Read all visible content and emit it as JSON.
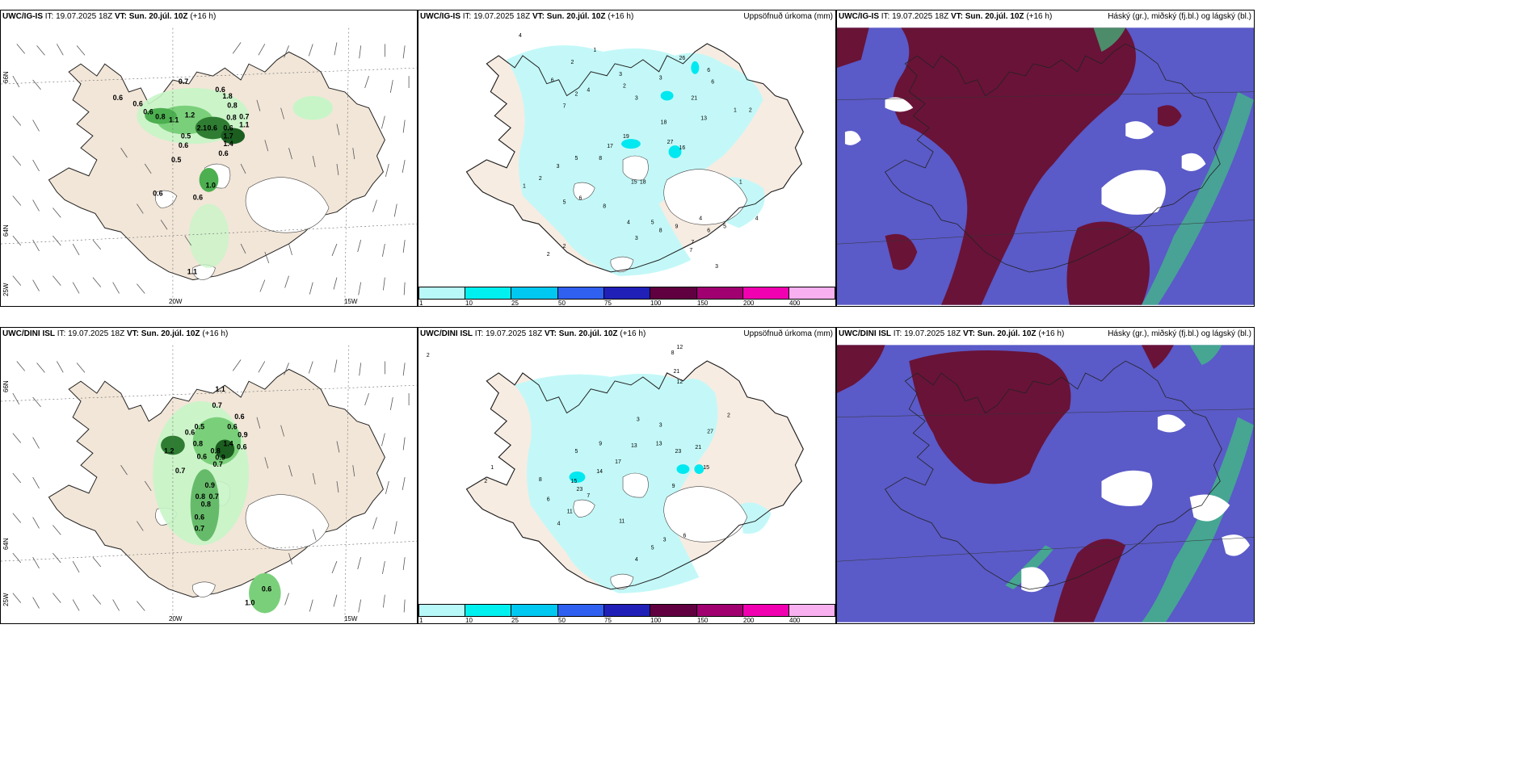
{
  "panels": {
    "p1": {
      "model": "UWC/IG-IS",
      "it": "IT: 19.07.2025 18Z",
      "vt": "VT: Sun. 20.júl. 10Z",
      "lead": "(+16 h)",
      "right": ""
    },
    "p2": {
      "model": "UWC/IG-IS",
      "it": "IT: 19.07.2025 18Z",
      "vt": "VT: Sun. 20.júl. 10Z",
      "lead": "(+16 h)",
      "right": "Uppsöfnuð úrkoma (mm)"
    },
    "p3": {
      "model": "UWC/IG-IS",
      "it": "IT: 19.07.2025 18Z",
      "vt": "VT: Sun. 20.júl. 10Z",
      "lead": "(+16 h)",
      "right": "Háský (gr.), miðský (fj.bl.) og lágský (bl.)"
    },
    "p4": {
      "model": "UWC/DINI ISL",
      "it": "IT: 19.07.2025 18Z",
      "vt": "VT: Sun. 20.júl. 10Z",
      "lead": "(+16 h)",
      "right": ""
    },
    "p5": {
      "model": "UWC/DINI ISL",
      "it": "IT: 19.07.2025 18Z",
      "vt": "VT: Sun. 20.júl. 10Z",
      "lead": "(+16 h)",
      "right": "Uppsöfnuð úrkoma (mm)"
    },
    "p6": {
      "model": "UWC/DINI ISL",
      "it": "IT: 19.07.2025 18Z",
      "vt": "VT: Sun. 20.júl. 10Z",
      "lead": "(+16 h)",
      "right": "Hásky (gr.), miðský (fj.bl.) og lágský (bl.)"
    }
  },
  "axes": {
    "lat66": "66N",
    "lat64": "64N",
    "lon25": "25W",
    "lon20": "20W",
    "lon15": "15W"
  },
  "colorbar": {
    "ticks": [
      "1",
      "10",
      "25",
      "50",
      "75",
      "100",
      "150",
      "200",
      "400"
    ],
    "colors": [
      "#b8f8f8",
      "#00f0f0",
      "#00c8f0",
      "#3060f0",
      "#2020b8",
      "#600040",
      "#a00070",
      "#f000b0",
      "#f8b0f0"
    ]
  },
  "map_colors": {
    "land": "#f2e6d8",
    "sea": "#ffffff",
    "rain_light": "#c4f8f8",
    "rain_mid": "#00e8f0",
    "cloud_high": "#6a1030",
    "cloud_mid": "#5a5ac8",
    "cloud_low": "#40c080"
  },
  "labels": {
    "p1": [
      "0.7",
      "0.6",
      "0.6",
      "0.6",
      "0.8",
      "0.6",
      "1.1",
      "1.2",
      "0.5",
      "2.1",
      "0.6",
      "0.8",
      "0.7",
      "1.1",
      "1.4",
      "1.7",
      "0.6",
      "0.5",
      "1.0",
      "0.6",
      "0.6",
      "1.1",
      "0.8",
      "1.8",
      "0.6",
      "0.6"
    ],
    "p2": [
      "4",
      "1",
      "2",
      "3",
      "2",
      "6",
      "7",
      "4",
      "2",
      "3",
      "3",
      "26",
      "6",
      "21",
      "18",
      "19",
      "27",
      "16",
      "17",
      "13",
      "15",
      "18",
      "6",
      "8",
      "5",
      "2",
      "3",
      "1",
      "2",
      "4",
      "5",
      "7",
      "8",
      "1",
      "2",
      "3",
      "4",
      "5",
      "6",
      "8",
      "9",
      "1",
      "2",
      "3",
      "4",
      "5",
      "6",
      "7"
    ],
    "p4": [
      "1.1",
      "0.7",
      "0.6",
      "0.5",
      "0.6",
      "0.6",
      "0.9",
      "0.8",
      "0.6",
      "1.4",
      "0.8",
      "1.2",
      "0.9",
      "0.7",
      "0.7",
      "0.9",
      "0.8",
      "0.8",
      "0.7",
      "0.6",
      "0.7",
      "0.6",
      "0.6",
      "1.0"
    ],
    "p5": [
      "2",
      "12",
      "8",
      "21",
      "12",
      "2",
      "3",
      "3",
      "13",
      "13",
      "27",
      "23",
      "21",
      "15",
      "17",
      "14",
      "15",
      "23",
      "11",
      "9",
      "8",
      "4",
      "5",
      "6",
      "7",
      "1",
      "2",
      "3",
      "4",
      "5",
      "6",
      "9",
      "11",
      "2"
    ]
  }
}
